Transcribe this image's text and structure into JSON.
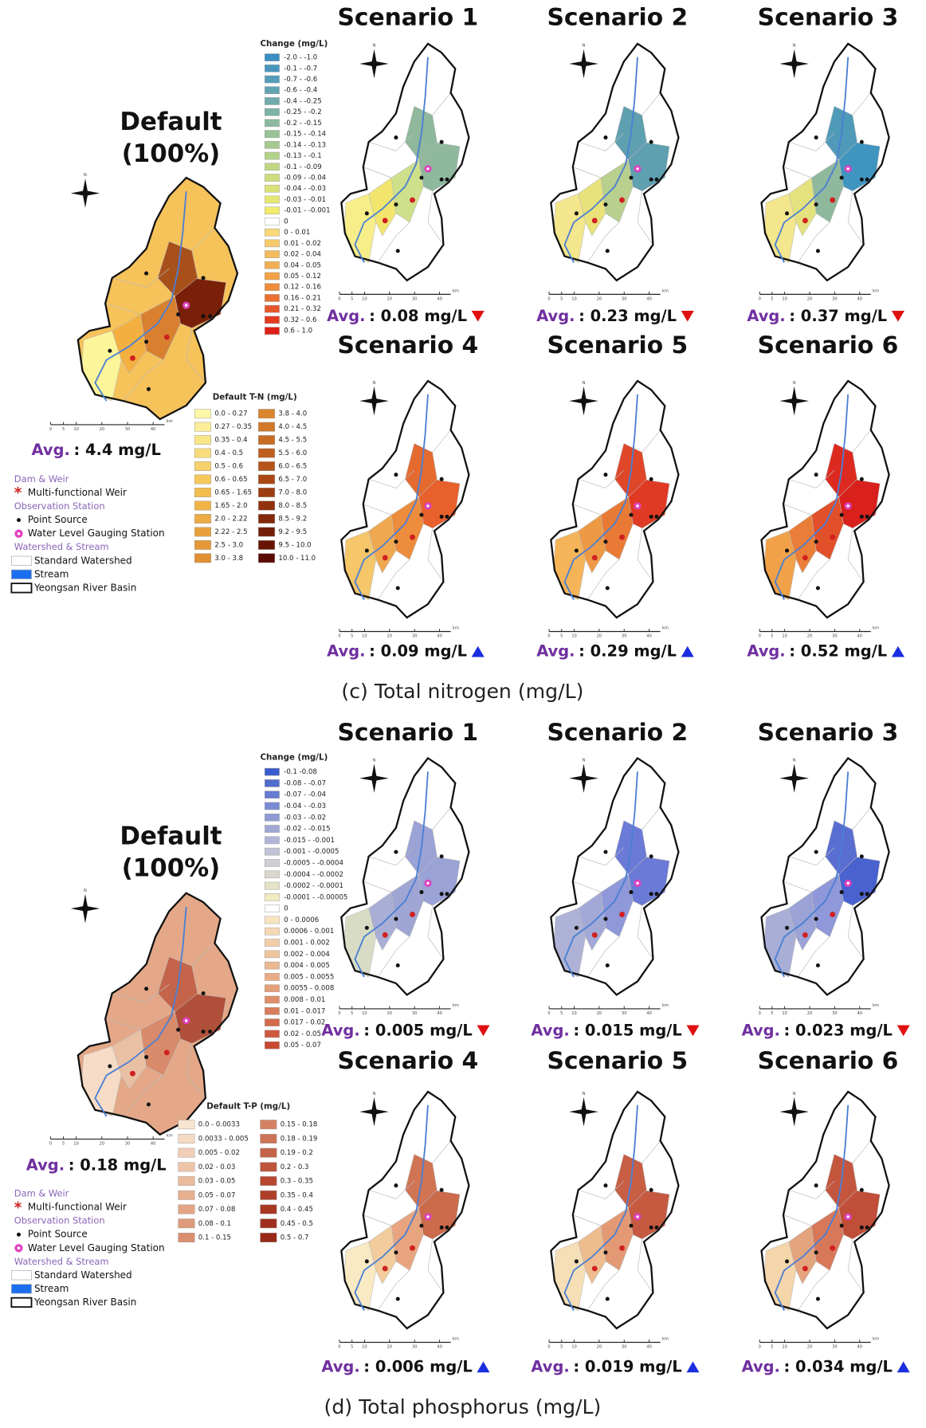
{
  "panels": [
    {
      "default_title": "Default",
      "default_pct": "(100%)",
      "avg_label": "Avg.",
      "default_avg": ": 4.4 mg/L",
      "north": "N",
      "scale_bar": {
        "ticks": [
          "0",
          "5",
          "10",
          "20",
          "30",
          "40"
        ],
        "unit": "km"
      },
      "change_legend": {
        "title": "Change (mg/L)",
        "items": [
          "-2.0 - -1.0",
          "-0.1 - -0.7",
          "-0.7 - -0.6",
          "-0.6 - -0.4",
          "-0.4 - -0.25",
          "-0.25 - -0.2",
          "-0.2 - -0.15",
          "-0.15 - -0.14",
          "-0.14 - -0.13",
          "-0.13 - -0.1",
          "-0.1 - -0.09",
          "-0.09 - -0.04",
          "-0.04 - -0.03",
          "-0.03 - -0.01",
          "-0.01 - -0.001",
          "0",
          "0 - 0.01",
          "0.01 - 0.02",
          "0.02 - 0.04",
          "0.04 - 0.05",
          "0.05 - 0.12",
          "0.12 - 0.16",
          "0.16 - 0.21",
          "0.21 - 0.32",
          "0.32 - 0.6",
          "0.6 - 1.0"
        ]
      },
      "default_legend": {
        "title": "Default T-N (mg/L)",
        "items": [
          "0.0 - 0.27",
          "0.27 - 0.35",
          "0.35 - 0.4",
          "0.4 - 0.5",
          "0.5 - 0.6",
          "0.6 - 0.65",
          "0.65 - 1.65",
          "1.65 - 2.0",
          "2.0 - 2.22",
          "2.22 - 2.5",
          "2.5 - 3.0",
          "3.0 - 3.8",
          "3.8 - 4.0",
          "4.0 - 4.5",
          "4.5 - 5.5",
          "5.5 - 6.0",
          "6.0 - 6.5",
          "6.5 - 7.0",
          "7.0 - 8.0",
          "8.0 - 8.5",
          "8.5 - 9.2",
          "9.2 - 9.5",
          "9.5 - 10.0",
          "10.0 - 11.0"
        ]
      },
      "layers": [
        {
          "text": "Dam & Weir",
          "kind": "header"
        },
        {
          "text": "Multi-functional Weir",
          "kind": "weir"
        },
        {
          "text": "Observation  Station",
          "kind": "header"
        },
        {
          "text": "Point Source",
          "kind": "point"
        },
        {
          "text": "Water Level Gauging Station",
          "kind": "gauge"
        },
        {
          "text": "Watershed & Stream",
          "kind": "header"
        },
        {
          "text": "Standard Watershed",
          "kind": "box"
        },
        {
          "text": "Stream",
          "kind": "stream"
        },
        {
          "text": "Yeongsan River Basin",
          "kind": "basin"
        }
      ],
      "scenarios": [
        {
          "title": "Scenario 1",
          "avg": ": 0.08 mg/L",
          "trend": "down"
        },
        {
          "title": "Scenario 2",
          "avg": ": 0.23 mg/L",
          "trend": "down"
        },
        {
          "title": "Scenario 3",
          "avg": ": 0.37 mg/L",
          "trend": "down"
        },
        {
          "title": "Scenario 4",
          "avg": ": 0.09 mg/L",
          "trend": "up"
        },
        {
          "title": "Scenario 5",
          "avg": ": 0.29 mg/L",
          "trend": "up"
        },
        {
          "title": "Scenario 6",
          "avg": ": 0.52 mg/L",
          "trend": "up"
        }
      ],
      "caption": "(c) Total nitrogen (mg/L)"
    },
    {
      "default_title": "Default",
      "default_pct": "(100%)",
      "avg_label": "Avg.",
      "default_avg": ": 0.18 mg/L",
      "north": "N",
      "scale_bar": {
        "ticks": [
          "0",
          "5",
          "10",
          "20",
          "30",
          "40"
        ],
        "unit": "km"
      },
      "change_legend": {
        "title": "Change (mg/L)",
        "items": [
          "-0.1 -0.08",
          "-0.08 - -0.07",
          "-0.07 - -0.04",
          "-0.04 - -0.03",
          "-0.03 - -0.02",
          "-0.02 - -0.015",
          "-0.015 - -0.001",
          "-0.001 - -0.0005",
          "-0.0005 - -0.0004",
          "-0.0004 - -0.0002",
          "-0.0002 - -0.0001",
          "-0.0001 - -0.00005",
          "0",
          "0 - 0.0006",
          "0.0006 - 0.001",
          "0.001 - 0.002",
          "0.002 - 0.004",
          "0.004 - 0.005",
          "0.005 - 0.0055",
          "0.0055 - 0.008",
          "0.008 - 0.01",
          "0.01 - 0.017",
          "0.017 - 0.02",
          "0.02 - 0.05",
          "0.05 - 0.07"
        ]
      },
      "default_legend": {
        "title": "Default T-P (mg/L)",
        "items": [
          "0.0 - 0.0033",
          "0.0033 - 0.005",
          "0.005 - 0.02",
          "0.02 - 0.03",
          "0.03 - 0.05",
          "0.05 - 0.07",
          "0.07 - 0.08",
          "0.08 - 0.1",
          "0.1 - 0.15",
          "0.15 - 0.18",
          "0.18 - 0.19",
          "0.19 - 0.2",
          "0.2 - 0.3",
          "0.3 - 0.35",
          "0.35 - 0.4",
          "0.4 - 0.45",
          "0.45 - 0.5",
          "0.5 - 0.7"
        ]
      },
      "layers": [
        {
          "text": "Dam & Weir",
          "kind": "header"
        },
        {
          "text": "Multi-functional Weir",
          "kind": "weir"
        },
        {
          "text": "Observation  Station",
          "kind": "header"
        },
        {
          "text": "Point Source",
          "kind": "point"
        },
        {
          "text": "Water Level Gauging Station",
          "kind": "gauge"
        },
        {
          "text": "Watershed & Stream",
          "kind": "header"
        },
        {
          "text": "Standard Watershed",
          "kind": "box"
        },
        {
          "text": "Stream",
          "kind": "stream"
        },
        {
          "text": "Yeongsan River Basin",
          "kind": "basin"
        }
      ],
      "scenarios": [
        {
          "title": "Scenario 1",
          "avg": ": 0.005 mg/L",
          "trend": "down"
        },
        {
          "title": "Scenario 2",
          "avg": ": 0.015 mg/L",
          "trend": "down"
        },
        {
          "title": "Scenario 3",
          "avg": ": 0.023 mg/L",
          "trend": "down"
        },
        {
          "title": "Scenario 4",
          "avg": ": 0.006 mg/L",
          "trend": "up"
        },
        {
          "title": "Scenario 5",
          "avg": ": 0.019 mg/L",
          "trend": "up"
        },
        {
          "title": "Scenario 6",
          "avg": ": 0.034 mg/L",
          "trend": "up"
        }
      ],
      "caption": "(d) Total phosphorus (mg/L)"
    }
  ]
}
